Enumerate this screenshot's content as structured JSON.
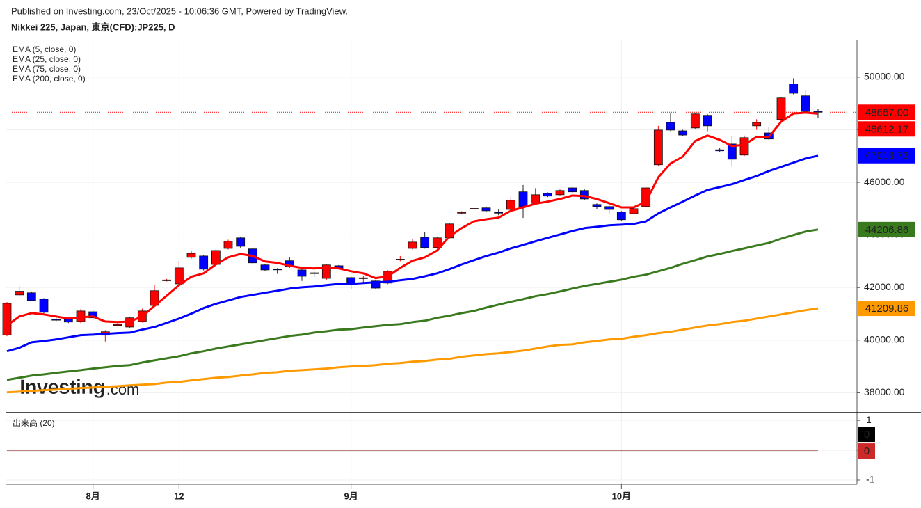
{
  "header": {
    "published": "Published on Investing.com, 23/Oct/2025 - 10:06:36 GMT, Powered by TradingView.",
    "symbol": "Nikkei 225, Japan, 東京(CFD):JP225, D"
  },
  "watermark": {
    "brand": "Investing",
    "suffix": ".com"
  },
  "chart_data": [
    {
      "type": "candlestick",
      "legend": "top-left",
      "grid": true,
      "up_color": "#ff0000",
      "down_color": "#0000ff",
      "categories": [
        null,
        null,
        null,
        null,
        null,
        null,
        null,
        "8月",
        null,
        null,
        null,
        null,
        null,
        null,
        "12",
        null,
        null,
        null,
        null,
        null,
        null,
        null,
        null,
        null,
        null,
        null,
        null,
        null,
        "9月",
        null,
        null,
        null,
        null,
        null,
        null,
        null,
        null,
        null,
        null,
        null,
        null,
        null,
        null,
        null,
        null,
        null,
        null,
        null,
        null,
        null,
        "10月",
        null,
        null,
        null,
        null,
        null,
        null,
        null,
        null,
        null,
        null,
        null,
        null,
        null,
        null,
        null,
        null
      ],
      "open": [
        40200,
        41720,
        41800,
        41560,
        40790,
        40820,
        40710,
        41080,
        40190,
        40560,
        40500,
        40710,
        41320,
        42260,
        42140,
        43150,
        43200,
        42880,
        43490,
        43890,
        43470,
        42860,
        42700,
        43020,
        42670,
        42560,
        42350,
        42830,
        42380,
        42340,
        42250,
        42170,
        43050,
        43490,
        43910,
        43520,
        43890,
        44830,
        44990,
        45030,
        44860,
        44970,
        45640,
        45210,
        45580,
        45530,
        45790,
        45690,
        45160,
        45080,
        44870,
        44810,
        45080,
        46670,
        48280,
        47960,
        48070,
        48550,
        47240,
        47460,
        47040,
        48150,
        47880,
        48390,
        49740,
        49290,
        48700
      ],
      "high": [
        41450,
        42050,
        41850,
        41600,
        40850,
        40870,
        41180,
        41150,
        40380,
        40650,
        40900,
        41200,
        42100,
        42330,
        43000,
        43400,
        43250,
        43450,
        43820,
        43930,
        43500,
        42900,
        42740,
        43150,
        42700,
        42600,
        42900,
        42860,
        42420,
        42450,
        42300,
        42660,
        43200,
        43850,
        44100,
        43930,
        44460,
        44900,
        45030,
        45080,
        44980,
        45450,
        45900,
        45780,
        45620,
        45730,
        45850,
        45730,
        45200,
        45120,
        44910,
        45050,
        45830,
        48150,
        48650,
        48000,
        48640,
        48600,
        47300,
        47750,
        47780,
        48400,
        48100,
        49250,
        49960,
        49500,
        48800
      ],
      "low": [
        40150,
        41650,
        41480,
        41020,
        40700,
        40650,
        40650,
        40780,
        39950,
        40520,
        40450,
        40670,
        41280,
        42230,
        42100,
        43100,
        42650,
        42850,
        43450,
        43520,
        42900,
        42620,
        42520,
        42750,
        42250,
        42400,
        42300,
        42700,
        41950,
        42150,
        41950,
        42130,
        43000,
        43450,
        43480,
        43480,
        43850,
        44780,
        44970,
        44880,
        44750,
        44930,
        44650,
        45170,
        45440,
        45490,
        45600,
        45330,
        44990,
        44800,
        44540,
        44780,
        45050,
        46630,
        47950,
        47760,
        48030,
        47950,
        47150,
        46600,
        47000,
        48000,
        47610,
        48350,
        49350,
        48650,
        48450
      ],
      "close": [
        41400,
        41860,
        41510,
        41060,
        40760,
        40690,
        41110,
        40850,
        40320,
        40600,
        40850,
        41110,
        41880,
        42290,
        42750,
        43300,
        42700,
        43410,
        43760,
        43570,
        42940,
        42670,
        42680,
        42800,
        42430,
        42530,
        42860,
        42730,
        42170,
        42370,
        41980,
        42620,
        43080,
        43730,
        43520,
        43890,
        44420,
        44860,
        45010,
        44920,
        44830,
        45320,
        45080,
        45530,
        45480,
        45690,
        45640,
        45370,
        45080,
        44970,
        44580,
        45000,
        45790,
        47990,
        47990,
        47800,
        48600,
        48150,
        47200,
        46880,
        47700,
        48280,
        47650,
        49210,
        49390,
        48700,
        48667
      ],
      "close_label": "48667.00",
      "series": [
        {
          "name": "EMA (5, close, 0)",
          "color": "#ff0000",
          "values": [
            40560,
            40900,
            41030,
            40980,
            40900,
            40820,
            40870,
            40900,
            40710,
            40690,
            40710,
            40900,
            41300,
            41690,
            42090,
            42410,
            42540,
            42880,
            43150,
            43280,
            43200,
            42990,
            42940,
            42830,
            42750,
            42730,
            42780,
            42730,
            42620,
            42540,
            42360,
            42430,
            42750,
            43020,
            43150,
            43410,
            43940,
            44260,
            44520,
            44600,
            44660,
            44920,
            45050,
            45190,
            45270,
            45370,
            45500,
            45480,
            45370,
            45210,
            45050,
            45050,
            45270,
            46190,
            46720,
            46980,
            47570,
            47780,
            47620,
            47380,
            47430,
            47730,
            47730,
            48310,
            48620,
            48650,
            48612.17
          ]
        },
        {
          "name": "EMA (25, close, 0)",
          "color": "#0000ff",
          "values": [
            39580,
            39710,
            39920,
            39970,
            40030,
            40110,
            40190,
            40210,
            40240,
            40270,
            40290,
            40400,
            40500,
            40660,
            40820,
            41010,
            41220,
            41380,
            41510,
            41640,
            41720,
            41800,
            41880,
            41960,
            42010,
            42040,
            42090,
            42140,
            42140,
            42170,
            42200,
            42220,
            42280,
            42330,
            42430,
            42540,
            42700,
            42880,
            43040,
            43200,
            43330,
            43490,
            43620,
            43760,
            43890,
            44020,
            44150,
            44260,
            44310,
            44370,
            44390,
            44420,
            44520,
            44820,
            45050,
            45270,
            45500,
            45710,
            45820,
            45930,
            46090,
            46240,
            46430,
            46590,
            46750,
            46910,
            47013.73
          ]
        },
        {
          "name": "EMA (75, close, 0)",
          "color": "#3a7a1e",
          "values": [
            38490,
            38570,
            38650,
            38700,
            38760,
            38810,
            38860,
            38920,
            38970,
            39020,
            39050,
            39150,
            39230,
            39310,
            39390,
            39500,
            39580,
            39680,
            39760,
            39840,
            39920,
            40000,
            40080,
            40160,
            40210,
            40290,
            40340,
            40400,
            40420,
            40480,
            40530,
            40580,
            40610,
            40690,
            40740,
            40850,
            40930,
            41030,
            41110,
            41240,
            41350,
            41460,
            41560,
            41670,
            41750,
            41850,
            41960,
            42060,
            42140,
            42220,
            42300,
            42410,
            42490,
            42620,
            42750,
            42910,
            43040,
            43180,
            43280,
            43390,
            43490,
            43600,
            43700,
            43860,
            44000,
            44130,
            44206.86
          ]
        },
        {
          "name": "EMA (200, close, 0)",
          "color": "#ff9900",
          "values": [
            38020,
            38040,
            38070,
            38100,
            38120,
            38150,
            38180,
            38200,
            38230,
            38250,
            38280,
            38310,
            38330,
            38390,
            38410,
            38470,
            38520,
            38570,
            38600,
            38650,
            38700,
            38760,
            38780,
            38840,
            38860,
            38890,
            38920,
            38970,
            39000,
            39020,
            39050,
            39100,
            39130,
            39180,
            39210,
            39260,
            39290,
            39370,
            39420,
            39470,
            39500,
            39550,
            39600,
            39680,
            39760,
            39820,
            39840,
            39920,
            39970,
            40030,
            40050,
            40130,
            40190,
            40270,
            40320,
            40400,
            40480,
            40560,
            40610,
            40690,
            40740,
            40820,
            40900,
            40980,
            41060,
            41140,
            41209.86
          ]
        }
      ],
      "ylim": [
        37270,
        51400
      ],
      "yticks": [
        {
          "value": 38000,
          "label": "38000.00"
        },
        {
          "value": 40000,
          "label": "40000.00"
        },
        {
          "value": 42000,
          "label": "42000.00"
        },
        {
          "value": 44000,
          "label": "44000.00"
        },
        {
          "value": 46000,
          "label": "46000.00"
        },
        {
          "value": 48000,
          "label": "48000.00"
        },
        {
          "value": 50000,
          "label": "50000.00"
        }
      ]
    },
    {
      "type": "line",
      "title": "出来高 (20)",
      "grid": true,
      "series": [
        {
          "color": "#000000",
          "values": [
            0,
            0,
            0,
            0,
            0,
            0,
            0,
            0,
            0,
            0,
            0,
            0,
            0,
            0,
            0,
            0,
            0,
            0,
            0,
            0,
            0,
            0,
            0,
            0,
            0,
            0,
            0,
            0,
            0,
            0,
            0,
            0,
            0,
            0,
            0,
            0,
            0,
            0,
            0,
            0,
            0,
            0,
            0,
            0,
            0,
            0,
            0,
            0,
            0,
            0,
            0,
            0,
            0,
            0,
            0,
            0,
            0,
            0,
            0,
            0,
            0,
            0,
            0,
            0,
            0,
            0,
            0
          ]
        },
        {
          "color": "#cc2929",
          "values": [
            0,
            0,
            0,
            0,
            0,
            0,
            0,
            0,
            0,
            0,
            0,
            0,
            0,
            0,
            0,
            0,
            0,
            0,
            0,
            0,
            0,
            0,
            0,
            0,
            0,
            0,
            0,
            0,
            0,
            0,
            0,
            0,
            0,
            0,
            0,
            0,
            0,
            0,
            0,
            0,
            0,
            0,
            0,
            0,
            0,
            0,
            0,
            0,
            0,
            0,
            0,
            0,
            0,
            0,
            0,
            0,
            0,
            0,
            0,
            0,
            0,
            0,
            0,
            0,
            0,
            0,
            0
          ]
        }
      ],
      "ylim": [
        -1.14,
        1.19
      ],
      "yticks": [
        -1,
        0,
        1
      ]
    }
  ]
}
